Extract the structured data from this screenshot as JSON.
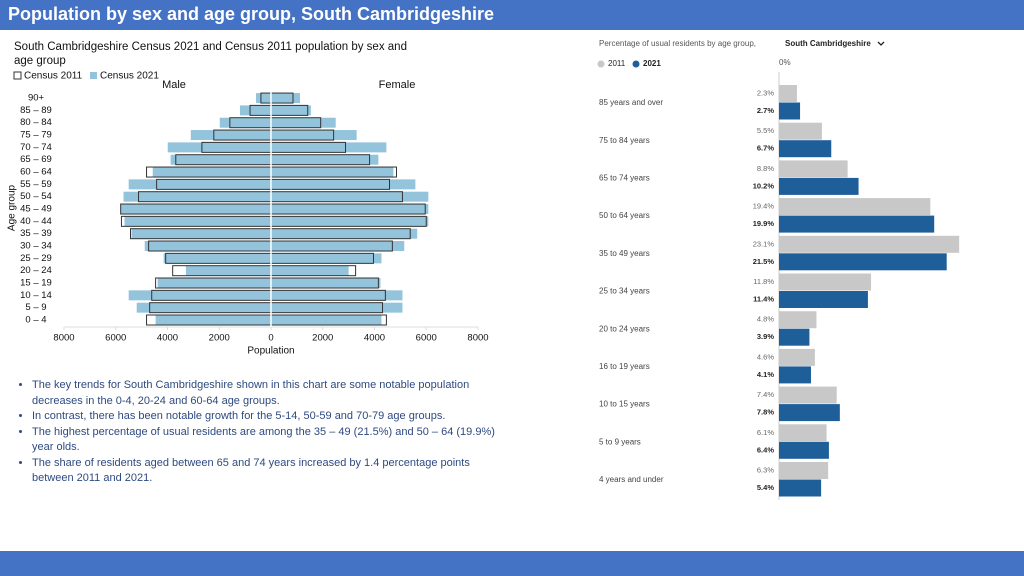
{
  "header": {
    "title": "Population by sex and age group, South Cambridgeshire"
  },
  "chart_data": [
    {
      "type": "pyramid",
      "title": "South Cambridgeshire Census 2021 and Census 2011 population by sex and age group",
      "left_label": "Male",
      "right_label": "Female",
      "xlabel": "Population",
      "ylabel": "Age group",
      "categories": [
        "0 – 4",
        "5 – 9",
        "10 – 14",
        "15 – 19",
        "20 – 24",
        "25 – 29",
        "30 – 34",
        "35 – 39",
        "40 – 44",
        "45 – 49",
        "50 – 54",
        "55 – 59",
        "60 – 64",
        "65 – 69",
        "70 – 74",
        "75 – 79",
        "80 – 84",
        "85 – 89",
        "90+"
      ],
      "series": [
        {
          "name": "Census 2011",
          "color": "#333333",
          "filled": false,
          "male": [
            -4810,
            -4690,
            -4610,
            -4460,
            -3800,
            -4070,
            -4730,
            -5430,
            -5780,
            -5810,
            -5120,
            -4420,
            -4810,
            -3680,
            -2670,
            -2210,
            -1590,
            -810,
            -390
          ],
          "female": [
            4460,
            4310,
            4420,
            4150,
            3270,
            3960,
            4690,
            5380,
            6000,
            5960,
            5080,
            4580,
            4850,
            3810,
            2880,
            2420,
            1920,
            1420,
            850
          ]
        },
        {
          "name": "Census 2021",
          "color": "#93c4dc",
          "filled": true,
          "male": [
            -4460,
            -5190,
            -5500,
            -4380,
            -3290,
            -4150,
            -4880,
            -5390,
            -5660,
            -5810,
            -5700,
            -5500,
            -4570,
            -3880,
            -3990,
            -3100,
            -1980,
            -1200,
            -580
          ],
          "female": [
            4270,
            5080,
            5080,
            4230,
            3000,
            4270,
            5150,
            5650,
            6080,
            6080,
            6080,
            5580,
            4730,
            4150,
            4460,
            3310,
            2500,
            1540,
            1120
          ]
        }
      ],
      "xlim": [
        -8000,
        8000
      ],
      "xticks": [
        {
          "value": -8000,
          "label": "8000"
        },
        {
          "value": -6000,
          "label": "6000"
        },
        {
          "value": -4000,
          "label": "4000"
        },
        {
          "value": -2000,
          "label": "2000"
        },
        0,
        2000,
        4000,
        6000,
        8000
      ]
    },
    {
      "type": "bar",
      "orientation": "horizontal",
      "title": "Percentage of usual residents by age group,",
      "area": "South Cambridgeshire",
      "categories": [
        "85 years and over",
        "75 to 84 years",
        "65 to 74 years",
        "50 to 64 years",
        "35 to 49 years",
        "25 to 34 years",
        "20 to 24 years",
        "16 to 19 years",
        "10 to 15 years",
        "5 to 9 years",
        "4 years and under"
      ],
      "series": [
        {
          "name": "2011",
          "color": "#c8c8c8",
          "values": [
            2.3,
            5.5,
            8.8,
            19.4,
            23.1,
            11.8,
            4.8,
            4.6,
            7.4,
            6.1,
            6.3
          ],
          "value_labels": [
            "2.3%",
            "5.5%",
            "8.8%",
            "19.4%",
            "23.1%",
            "11.8%",
            "4.8%",
            "4.6%",
            "7.4%",
            "6.1%",
            "6.3%"
          ]
        },
        {
          "name": "2021",
          "color": "#1f5f99",
          "values": [
            2.7,
            6.7,
            10.2,
            19.9,
            21.5,
            11.4,
            3.9,
            4.1,
            7.8,
            6.4,
            5.4
          ],
          "value_labels": [
            "2.7%",
            "6.7%",
            "10.2%",
            "19.9%",
            "21.5%",
            "11.4%",
            "3.9%",
            "4.1%",
            "7.8%",
            "6.4%",
            "5.4%"
          ]
        }
      ],
      "xlim": [
        0,
        25
      ],
      "xticks": [
        {
          "value": 0,
          "label": "0%"
        }
      ]
    }
  ],
  "bullets": [
    "The key trends for South Cambridgeshire shown in this chart are some notable population decreases in the 0-4, 20-24 and 60-64 age groups.",
    "In contrast, there has been notable growth for the 5-14, 50-59 and 70-79 age groups.",
    "The highest percentage of usual residents are among the 35 – 49 (21.5%) and 50 – 64 (19.9%) year olds.",
    "The share of residents aged between 65 and 74 years increased by 1.4 percentage points between 2011 and 2021."
  ]
}
